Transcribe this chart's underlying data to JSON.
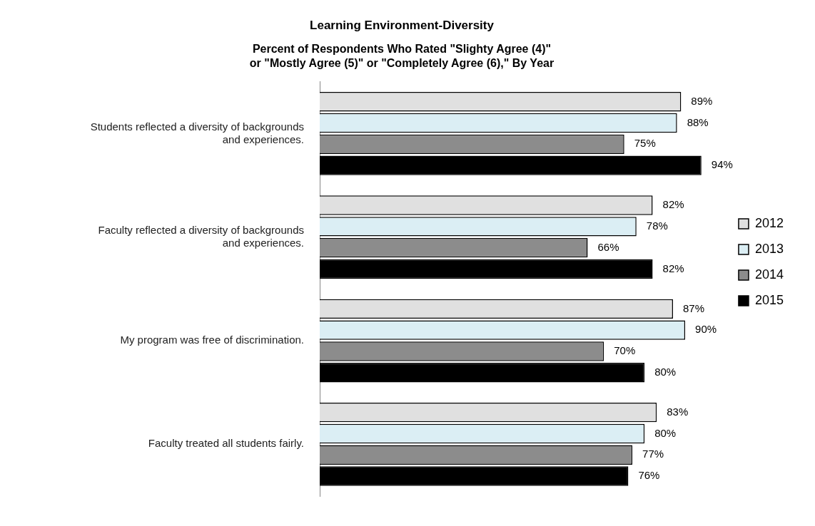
{
  "chart_data": {
    "type": "bar",
    "orientation": "horizontal",
    "title": "Learning Environment-Diversity",
    "subtitle": "Percent of Respondents Who Rated \"Slighty Agree (4)\"\nor \"Mostly Agree (5)\" or \"Completely Agree (6),\" By Year",
    "categories": [
      "Students reflected a diversity of backgrounds and experiences.",
      "Faculty reflected a diversity of backgrounds and experiences.",
      "My program was free of discrimination.",
      "Faculty treated all students fairly."
    ],
    "series": [
      {
        "name": "2012",
        "color": "#e0e0e0",
        "values": [
          89,
          82,
          87,
          83
        ],
        "value_labels": [
          "89%",
          "82%",
          "87%",
          "83%"
        ]
      },
      {
        "name": "2013",
        "color": "#dbeef4",
        "values": [
          88,
          78,
          90,
          80
        ],
        "value_labels": [
          "88%",
          "78%",
          "90%",
          "80%"
        ]
      },
      {
        "name": "2014",
        "color": "#8c8c8c",
        "values": [
          75,
          66,
          70,
          77
        ],
        "value_labels": [
          "75%",
          "66%",
          "70%",
          "77%"
        ]
      },
      {
        "name": "2015",
        "color": "#000000",
        "values": [
          94,
          82,
          80,
          76
        ],
        "value_labels": [
          "94%",
          "82%",
          "80%",
          "76%"
        ]
      }
    ],
    "legend": "right"
  }
}
